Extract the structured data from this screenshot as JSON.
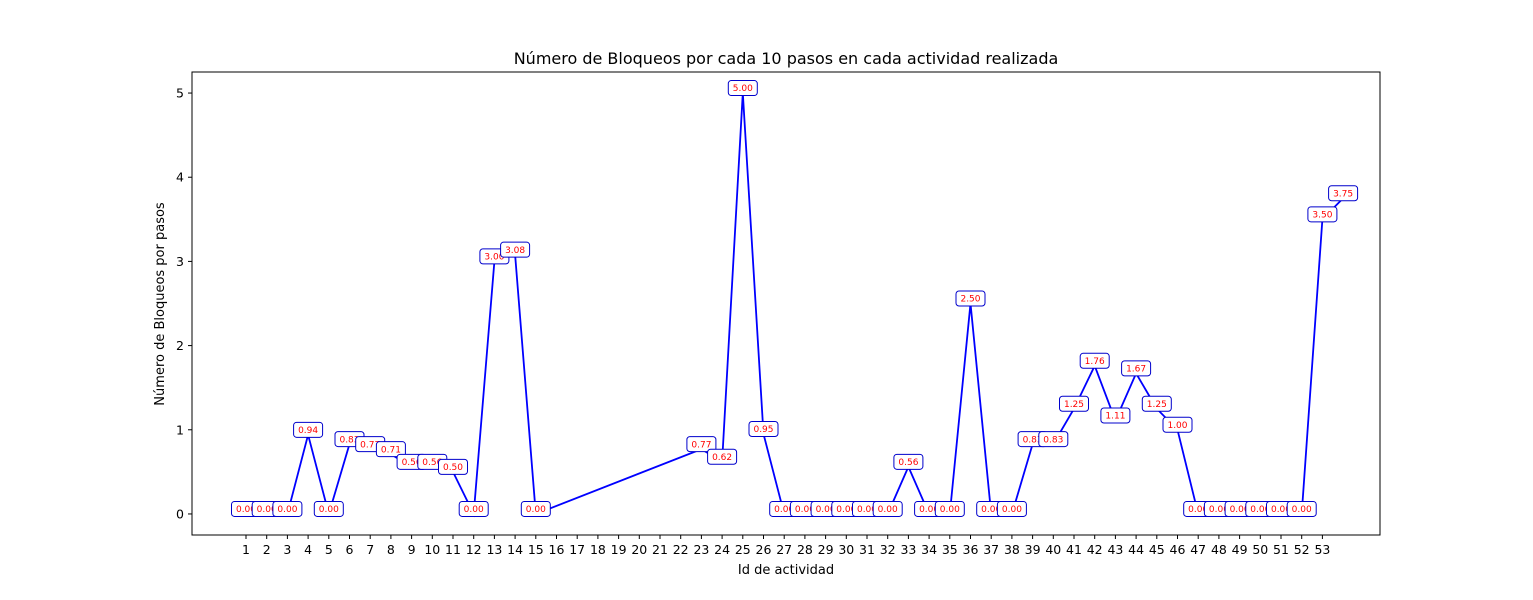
{
  "chart_data": {
    "type": "line",
    "title": "Número de Bloqueos por cada 10 pasos en cada actividad realizada",
    "xlabel": "Id de actividad",
    "ylabel": "Número de Bloqueos por pasos",
    "x_ticks": [
      1,
      2,
      3,
      4,
      5,
      6,
      7,
      8,
      9,
      10,
      11,
      12,
      13,
      14,
      15,
      16,
      17,
      18,
      19,
      20,
      21,
      22,
      23,
      24,
      25,
      26,
      27,
      28,
      29,
      30,
      31,
      32,
      33,
      34,
      35,
      36,
      37,
      38,
      39,
      40,
      41,
      42,
      43,
      44,
      45,
      46,
      47,
      48,
      49,
      50,
      51,
      52,
      53
    ],
    "y_ticks": [
      0,
      1,
      2,
      3,
      4,
      5
    ],
    "ylim": [
      -0.25,
      5.25
    ],
    "grid": false,
    "line_color": "#0000ff",
    "label_text_color": "#ff0000",
    "label_border_color": "#0000cc",
    "points": [
      {
        "x": 1,
        "y": 0.0,
        "label": "0.00"
      },
      {
        "x": 2,
        "y": 0.0,
        "label": "0.00"
      },
      {
        "x": 3,
        "y": 0.0,
        "label": "0.00"
      },
      {
        "x": 4,
        "y": 0.94,
        "label": "0.94"
      },
      {
        "x": 5,
        "y": 0.0,
        "label": "0.00"
      },
      {
        "x": 6,
        "y": 0.83,
        "label": "0.83"
      },
      {
        "x": 7,
        "y": 0.77,
        "label": "0.77"
      },
      {
        "x": 8,
        "y": 0.71,
        "label": "0.71"
      },
      {
        "x": 9,
        "y": 0.56,
        "label": "0.56"
      },
      {
        "x": 10,
        "y": 0.56,
        "label": "0.56"
      },
      {
        "x": 11,
        "y": 0.5,
        "label": "0.50"
      },
      {
        "x": 12,
        "y": 0.0,
        "label": "0.00"
      },
      {
        "x": 13,
        "y": 3.0,
        "label": "3.00"
      },
      {
        "x": 14,
        "y": 3.08,
        "label": "3.08"
      },
      {
        "x": 15,
        "y": 0.0,
        "label": "0.00"
      },
      {
        "x": 23,
        "y": 0.77,
        "label": "0.77"
      },
      {
        "x": 24,
        "y": 0.62,
        "label": "0.62"
      },
      {
        "x": 25,
        "y": 5.0,
        "label": "5.00"
      },
      {
        "x": 26,
        "y": 0.95,
        "label": "0.95"
      },
      {
        "x": 27,
        "y": 0.0,
        "label": "0.00"
      },
      {
        "x": 28,
        "y": 0.0,
        "label": "0.00"
      },
      {
        "x": 29,
        "y": 0.0,
        "label": "0.00"
      },
      {
        "x": 30,
        "y": 0.0,
        "label": "0.00"
      },
      {
        "x": 31,
        "y": 0.0,
        "label": "0.00"
      },
      {
        "x": 32,
        "y": 0.0,
        "label": "0.00"
      },
      {
        "x": 33,
        "y": 0.56,
        "label": "0.56"
      },
      {
        "x": 34,
        "y": 0.0,
        "label": "0.00"
      },
      {
        "x": 35,
        "y": 0.0,
        "label": "0.00"
      },
      {
        "x": 36,
        "y": 2.5,
        "label": "2.50"
      },
      {
        "x": 37,
        "y": 0.0,
        "label": "0.00"
      },
      {
        "x": 38,
        "y": 0.0,
        "label": "0.00"
      },
      {
        "x": 39,
        "y": 0.83,
        "label": "0.83"
      },
      {
        "x": 40,
        "y": 0.83,
        "label": "0.83"
      },
      {
        "x": 41,
        "y": 1.25,
        "label": "1.25"
      },
      {
        "x": 42,
        "y": 1.76,
        "label": "1.76"
      },
      {
        "x": 43,
        "y": 1.11,
        "label": "1.11"
      },
      {
        "x": 44,
        "y": 1.67,
        "label": "1.67"
      },
      {
        "x": 45,
        "y": 1.25,
        "label": "1.25"
      },
      {
        "x": 46,
        "y": 1.0,
        "label": "1.00"
      },
      {
        "x": 47,
        "y": 0.0,
        "label": "0.00"
      },
      {
        "x": 48,
        "y": 0.0,
        "label": "0.00"
      },
      {
        "x": 49,
        "y": 0.0,
        "label": "0.00"
      },
      {
        "x": 50,
        "y": 0.0,
        "label": "0.00"
      },
      {
        "x": 51,
        "y": 0.0,
        "label": "0.00"
      },
      {
        "x": 52,
        "y": 0.0,
        "label": "0.00"
      },
      {
        "x": 53,
        "y": 3.5,
        "label": "3.50"
      },
      {
        "x": 54,
        "y": 3.75,
        "label": "3.75"
      }
    ]
  }
}
